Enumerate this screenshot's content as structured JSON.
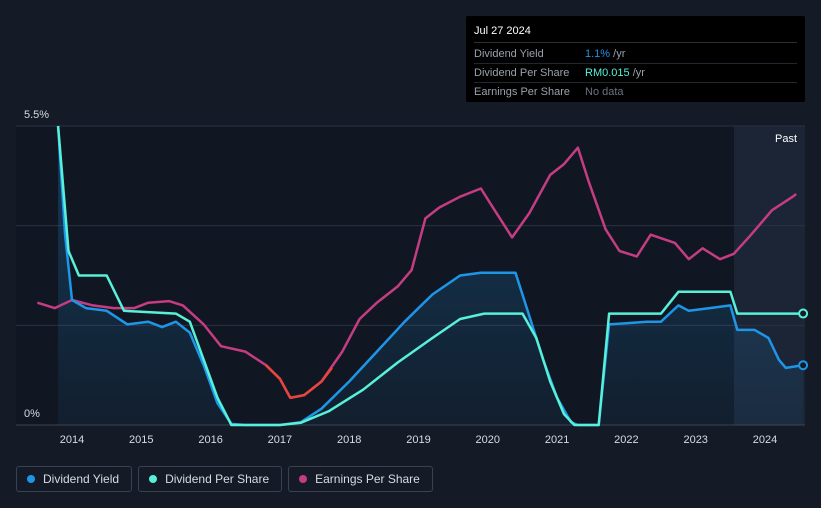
{
  "tooltip": {
    "date": "Jul 27 2024",
    "rows": [
      {
        "label": "Dividend Yield",
        "value": "1.1%",
        "unit": " /yr"
      },
      {
        "label": "Dividend Per Share",
        "value": "RM0.015",
        "unit": " /yr"
      },
      {
        "label": "Earnings Per Share",
        "value": "No data",
        "unit": ""
      }
    ]
  },
  "colors": {
    "dividend_yield": "#1e96e8",
    "dividend_per_share": "#58f0d8",
    "earnings_per_share": "#c43d83",
    "eps_negative": "#e8453c",
    "background": "#151b26"
  },
  "chart_data": {
    "type": "line",
    "ylim": [
      0,
      5.5
    ],
    "ytick_labels": [
      "5.5%",
      "0%"
    ],
    "xlim": [
      2013.3,
      2024.6
    ],
    "x_ticks": [
      2014,
      2015,
      2016,
      2017,
      2018,
      2019,
      2020,
      2021,
      2022,
      2023,
      2024
    ],
    "past_label": "Past",
    "forecast_region_start": 2023.55,
    "series": [
      {
        "name": "Dividend Yield",
        "key": "dividend_yield",
        "filled": true,
        "points": [
          [
            2013.8,
            5.5
          ],
          [
            2013.9,
            3.5
          ],
          [
            2014.0,
            2.3
          ],
          [
            2014.2,
            2.15
          ],
          [
            2014.5,
            2.1
          ],
          [
            2014.8,
            1.85
          ],
          [
            2015.1,
            1.9
          ],
          [
            2015.3,
            1.8
          ],
          [
            2015.5,
            1.9
          ],
          [
            2015.7,
            1.7
          ],
          [
            2015.9,
            1.1
          ],
          [
            2016.1,
            0.4
          ],
          [
            2016.3,
            0.02
          ],
          [
            2016.5,
            0.0
          ],
          [
            2017.0,
            0.0
          ],
          [
            2017.3,
            0.05
          ],
          [
            2017.6,
            0.3
          ],
          [
            2018.0,
            0.8
          ],
          [
            2018.4,
            1.35
          ],
          [
            2018.8,
            1.9
          ],
          [
            2019.2,
            2.4
          ],
          [
            2019.6,
            2.75
          ],
          [
            2019.9,
            2.8
          ],
          [
            2020.4,
            2.8
          ],
          [
            2020.6,
            2.0
          ],
          [
            2020.8,
            1.2
          ],
          [
            2021.0,
            0.5
          ],
          [
            2021.2,
            0.05
          ],
          [
            2021.3,
            0.0
          ],
          [
            2021.6,
            0.0
          ],
          [
            2021.75,
            1.85
          ],
          [
            2022.0,
            1.87
          ],
          [
            2022.3,
            1.9
          ],
          [
            2022.5,
            1.9
          ],
          [
            2022.75,
            2.2
          ],
          [
            2022.9,
            2.1
          ],
          [
            2023.2,
            2.15
          ],
          [
            2023.5,
            2.2
          ],
          [
            2023.6,
            1.75
          ],
          [
            2023.85,
            1.75
          ],
          [
            2024.05,
            1.6
          ],
          [
            2024.2,
            1.2
          ],
          [
            2024.3,
            1.05
          ],
          [
            2024.55,
            1.1
          ]
        ]
      },
      {
        "name": "Dividend Per Share",
        "key": "dividend_per_share",
        "filled": false,
        "points": [
          [
            2013.8,
            5.5
          ],
          [
            2013.95,
            3.2
          ],
          [
            2014.1,
            2.75
          ],
          [
            2014.5,
            2.75
          ],
          [
            2014.75,
            2.1
          ],
          [
            2015.5,
            2.05
          ],
          [
            2015.7,
            1.9
          ],
          [
            2015.9,
            1.2
          ],
          [
            2016.1,
            0.5
          ],
          [
            2016.3,
            0.0
          ],
          [
            2017.0,
            0.0
          ],
          [
            2017.3,
            0.04
          ],
          [
            2017.7,
            0.25
          ],
          [
            2018.2,
            0.65
          ],
          [
            2018.7,
            1.15
          ],
          [
            2019.2,
            1.6
          ],
          [
            2019.6,
            1.95
          ],
          [
            2019.95,
            2.05
          ],
          [
            2020.5,
            2.05
          ],
          [
            2020.7,
            1.6
          ],
          [
            2020.9,
            0.8
          ],
          [
            2021.1,
            0.2
          ],
          [
            2021.25,
            0.0
          ],
          [
            2021.6,
            0.0
          ],
          [
            2021.75,
            2.05
          ],
          [
            2022.5,
            2.05
          ],
          [
            2022.75,
            2.45
          ],
          [
            2023.5,
            2.45
          ],
          [
            2023.6,
            2.05
          ],
          [
            2024.55,
            2.05
          ]
        ]
      },
      {
        "name": "Earnings Per Share",
        "key": "earnings_per_share",
        "filled": false,
        "points": [
          [
            2013.5,
            2.25
          ],
          [
            2013.75,
            2.15
          ],
          [
            2014.0,
            2.3
          ],
          [
            2014.3,
            2.2
          ],
          [
            2014.6,
            2.15
          ],
          [
            2014.9,
            2.15
          ],
          [
            2015.1,
            2.25
          ],
          [
            2015.4,
            2.28
          ],
          [
            2015.6,
            2.2
          ],
          [
            2015.9,
            1.85
          ],
          [
            2016.15,
            1.45
          ],
          [
            2016.5,
            1.35
          ],
          [
            2016.8,
            1.1
          ],
          [
            2017.0,
            0.85
          ],
          [
            2017.15,
            0.5
          ],
          [
            2017.35,
            0.55
          ],
          [
            2017.6,
            0.8
          ],
          [
            2017.9,
            1.35
          ],
          [
            2018.15,
            1.95
          ],
          [
            2018.4,
            2.25
          ],
          [
            2018.7,
            2.55
          ],
          [
            2018.9,
            2.85
          ],
          [
            2019.1,
            3.8
          ],
          [
            2019.3,
            4.0
          ],
          [
            2019.6,
            4.2
          ],
          [
            2019.9,
            4.35
          ],
          [
            2020.1,
            3.95
          ],
          [
            2020.35,
            3.45
          ],
          [
            2020.6,
            3.9
          ],
          [
            2020.9,
            4.6
          ],
          [
            2021.1,
            4.8
          ],
          [
            2021.3,
            5.1
          ],
          [
            2021.45,
            4.5
          ],
          [
            2021.7,
            3.6
          ],
          [
            2021.9,
            3.2
          ],
          [
            2022.15,
            3.1
          ],
          [
            2022.35,
            3.5
          ],
          [
            2022.7,
            3.35
          ],
          [
            2022.9,
            3.05
          ],
          [
            2023.1,
            3.25
          ],
          [
            2023.35,
            3.05
          ],
          [
            2023.55,
            3.15
          ],
          [
            2023.8,
            3.5
          ],
          [
            2024.1,
            3.95
          ],
          [
            2024.4,
            4.2
          ],
          [
            2024.45,
            4.25
          ]
        ],
        "negative_points": [
          [
            2016.8,
            1.1
          ],
          [
            2017.0,
            0.85
          ],
          [
            2017.15,
            0.5
          ],
          [
            2017.35,
            0.55
          ],
          [
            2017.6,
            0.8
          ],
          [
            2017.75,
            1.05
          ]
        ]
      }
    ],
    "end_markers": [
      {
        "series": "dividend_per_share",
        "x": 2024.55,
        "y": 2.05
      },
      {
        "series": "dividend_yield",
        "x": 2024.55,
        "y": 1.1
      }
    ]
  },
  "legend": [
    {
      "label": "Dividend Yield",
      "key": "dividend_yield"
    },
    {
      "label": "Dividend Per Share",
      "key": "dividend_per_share"
    },
    {
      "label": "Earnings Per Share",
      "key": "earnings_per_share"
    }
  ]
}
